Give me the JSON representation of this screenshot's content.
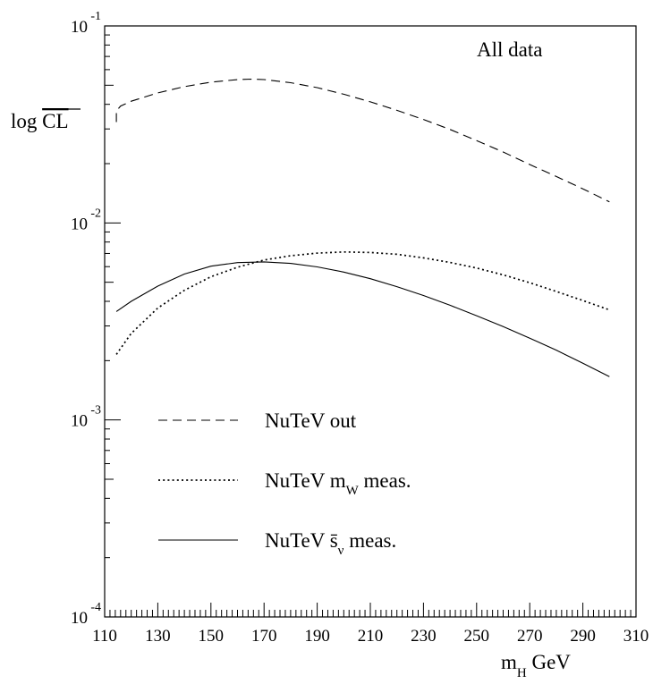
{
  "chart_data": {
    "type": "line",
    "title": "All data",
    "ylabel": {
      "prefix": "log ",
      "overlined": "CL"
    },
    "xlabel": {
      "main": "m",
      "sub": "H",
      "suffix": " GeV"
    },
    "xlim": [
      110,
      310
    ],
    "ylim": [
      0.0001,
      0.1
    ],
    "yscale": "log",
    "x_ticks": [
      110,
      130,
      150,
      170,
      190,
      210,
      230,
      250,
      270,
      290,
      310
    ],
    "y_ticks": [
      {
        "value": 0.1,
        "base": "10",
        "exponent": "-1"
      },
      {
        "value": 0.01,
        "base": "10",
        "exponent": "-2"
      },
      {
        "value": 0.001,
        "base": "10",
        "exponent": "-3"
      },
      {
        "value": 0.0001,
        "base": "10",
        "exponent": "-4"
      }
    ],
    "grid": false,
    "legend_position": "lower-left",
    "series": [
      {
        "name": "NuTeV out",
        "legend": {
          "main": "NuTeV out",
          "sub": "",
          "after": ""
        },
        "style": "dashed",
        "x": [
          114.4,
          114.4,
          116,
          120,
          130,
          140,
          150,
          160,
          165,
          170,
          180,
          190,
          200,
          210,
          220,
          230,
          240,
          250,
          260,
          270,
          280,
          290,
          300
        ],
        "y": [
          0.0325,
          0.037,
          0.0392,
          0.0415,
          0.0457,
          0.0492,
          0.0518,
          0.0534,
          0.0537,
          0.0534,
          0.0515,
          0.0486,
          0.045,
          0.0412,
          0.0373,
          0.0335,
          0.0298,
          0.0262,
          0.0229,
          0.0198,
          0.0172,
          0.0149,
          0.0128
        ]
      },
      {
        "name": "NuTeV m_W meas.",
        "legend": {
          "main": "NuTeV m",
          "sub": "W",
          "after": " meas."
        },
        "style": "dotted",
        "x": [
          114.4,
          120,
          130,
          140,
          150,
          160,
          170,
          180,
          190,
          200,
          210,
          220,
          230,
          240,
          250,
          260,
          270,
          280,
          290,
          300
        ],
        "y": [
          0.00215,
          0.00275,
          0.0037,
          0.00455,
          0.00533,
          0.00596,
          0.00648,
          0.00682,
          0.00703,
          0.00712,
          0.00708,
          0.00693,
          0.00665,
          0.0063,
          0.0059,
          0.00545,
          0.00497,
          0.00449,
          0.00404,
          0.00362
        ]
      },
      {
        "name": "NuTeV s̄_ν meas.",
        "legend": {
          "main": "NuTeV s̄",
          "sub": "ν",
          "after": " meas."
        },
        "style": "solid",
        "x": [
          114.4,
          120,
          130,
          140,
          150,
          160,
          170,
          180,
          190,
          200,
          210,
          220,
          230,
          240,
          250,
          260,
          270,
          280,
          290,
          300
        ],
        "y": [
          0.00355,
          0.004,
          0.00478,
          0.0055,
          0.00603,
          0.00629,
          0.00634,
          0.00623,
          0.00598,
          0.00563,
          0.00521,
          0.00475,
          0.00428,
          0.00382,
          0.00338,
          0.00298,
          0.0026,
          0.00226,
          0.00194,
          0.00166
        ]
      }
    ]
  }
}
